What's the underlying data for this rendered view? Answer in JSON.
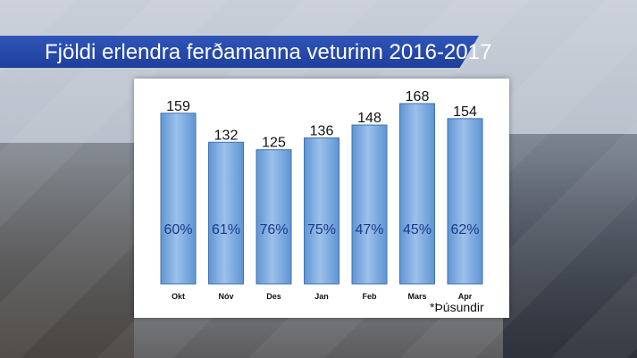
{
  "chart_data": {
    "type": "bar",
    "title": "Fjöldi erlendra ferðamanna veturinn 2016-2017",
    "categories": [
      "Okt",
      "Nóv",
      "Des",
      "Jan",
      "Feb",
      "Mars",
      "Apr"
    ],
    "values": [
      159,
      132,
      125,
      136,
      148,
      168,
      154
    ],
    "bar_labels": [
      "159",
      "132",
      "125",
      "136",
      "148",
      "168",
      "154"
    ],
    "inner_labels": [
      "60%",
      "61%",
      "76%",
      "75%",
      "47%",
      "45%",
      "62%"
    ],
    "ylim": [
      0,
      175
    ],
    "grid": false,
    "footnote": "*Þúsundir",
    "colors": {
      "bar": "#5f95d3",
      "bar_light": "#9cc1ea",
      "inner_label": "#1d3a8a",
      "banner": "#2a4fb0"
    }
  }
}
